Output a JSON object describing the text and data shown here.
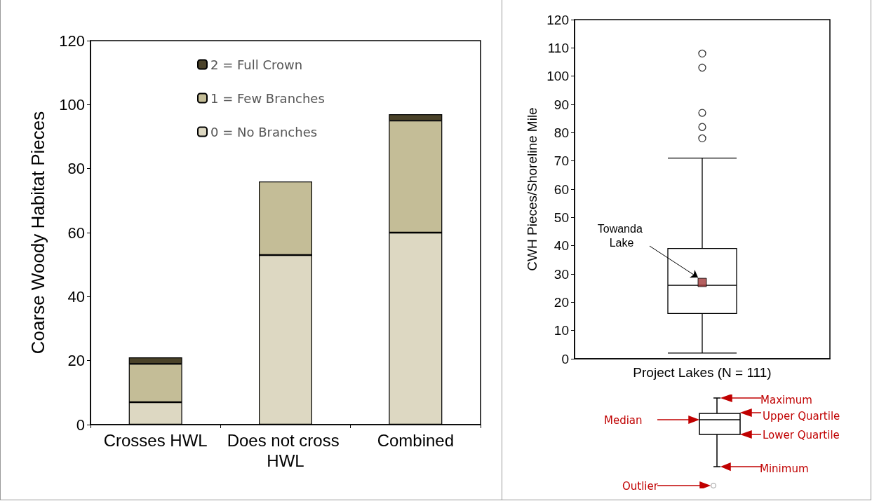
{
  "chart_data": [
    {
      "type": "bar",
      "stacked": true,
      "ylabel": "Coarse Woody Habitat Pieces",
      "categories": [
        "Crosses HWL",
        "Does not cross HWL",
        "Combined"
      ],
      "series": [
        {
          "name": "0 = No Branches",
          "color": "#ddd8c2",
          "values": [
            7,
            53,
            60
          ]
        },
        {
          "name": "1 = Few Branches",
          "color": "#c4bd97",
          "values": [
            12,
            23,
            35
          ]
        },
        {
          "name": "2 = Full Crown",
          "color": "#4a4229",
          "values": [
            2,
            0,
            2
          ]
        }
      ],
      "ylim": [
        0,
        120
      ],
      "yticks": [
        0,
        20,
        40,
        60,
        80,
        100,
        120
      ],
      "grid": false,
      "legend": "top"
    },
    {
      "type": "box",
      "ylabel": "CWH Pieces/Shoreline Mile",
      "categories": [
        "Project Lakes (N = 111)"
      ],
      "boxes": [
        {
          "low": 2,
          "q1": 16,
          "median": 26,
          "q3": 39,
          "high": 71,
          "outliers": [
            78,
            82,
            87,
            103,
            108
          ]
        }
      ],
      "series": [
        {
          "type": "scatter",
          "color": "#a33a3a",
          "x": [
            "Project Lakes (N = 111)"
          ],
          "values": [
            27
          ],
          "marker": "square"
        }
      ],
      "ylim": [
        0,
        120
      ],
      "yticks": [
        0,
        10,
        20,
        30,
        40,
        50,
        60,
        70,
        80,
        90,
        100,
        110,
        120
      ],
      "grid": false,
      "legend": false,
      "annotations": [
        "Towanda Lake",
        "Maximum",
        "Upper Quartile",
        "Median",
        "Lower Quartile",
        "Minimum",
        "Outlier"
      ]
    }
  ]
}
